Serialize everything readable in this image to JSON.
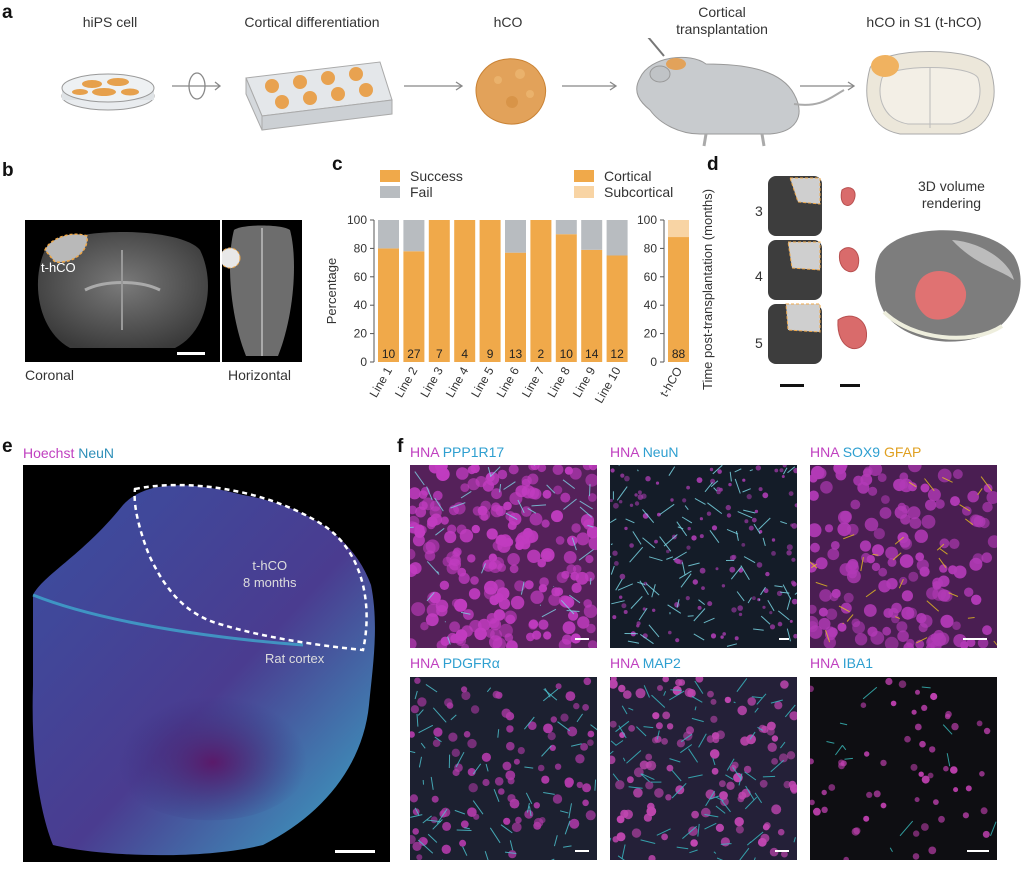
{
  "panels": {
    "a": "a",
    "b": "b",
    "c": "c",
    "d": "d",
    "e": "e",
    "f": "f"
  },
  "a": {
    "steps": [
      "hiPS cell",
      "Cortical differentiation",
      "hCO",
      "Cortical\ntransplantation",
      "hCO in S1 (t-hCO)"
    ]
  },
  "b": {
    "inset_label": "t-hCO",
    "views": [
      "Coronal",
      "Horizontal"
    ]
  },
  "c": {
    "legend_left": [
      "Success",
      "Fail"
    ],
    "legend_right": [
      "Cortical",
      "Subcortical"
    ],
    "colors": {
      "success": "#f0a94a",
      "fail": "#b8bcc0",
      "cortical": "#f0a94a",
      "subcortical": "#f8d4a4"
    }
  },
  "chart_data": [
    {
      "type": "bar",
      "stacked": true,
      "categories": [
        "Line 1",
        "Line 2",
        "Line 3",
        "Line 4",
        "Line 5",
        "Line 6",
        "Line 7",
        "Line 8",
        "Line 9",
        "Line 10"
      ],
      "series": [
        {
          "name": "Success",
          "values": [
            80,
            78,
            100,
            100,
            100,
            77,
            100,
            90,
            79,
            75
          ]
        },
        {
          "name": "Fail",
          "values": [
            20,
            22,
            0,
            0,
            0,
            23,
            0,
            10,
            21,
            25
          ]
        }
      ],
      "counts": [
        "10",
        "27",
        "7",
        "4",
        "9",
        "13",
        "2",
        "10",
        "14",
        "12"
      ],
      "ylabel": "Percentage",
      "ylim": [
        0,
        100
      ],
      "yticks": [
        "0",
        "20",
        "40",
        "60",
        "80",
        "100"
      ]
    },
    {
      "type": "bar",
      "stacked": true,
      "categories": [
        "t-hCO"
      ],
      "series": [
        {
          "name": "Cortical",
          "values": [
            88
          ]
        },
        {
          "name": "Subcortical",
          "values": [
            12
          ]
        }
      ],
      "counts": [
        "88"
      ],
      "ylim": [
        0,
        100
      ],
      "yticks": [
        "0",
        "20",
        "40",
        "60",
        "80",
        "100"
      ]
    }
  ],
  "d": {
    "ylabel": "Time post-transplantation (months)",
    "months": [
      "3",
      "4",
      "5"
    ],
    "render_label": "3D volume\nrendering"
  },
  "e": {
    "stains": [
      {
        "text": "Hoechst",
        "color": "#c040c0"
      },
      {
        "text": "NeuN",
        "color": "#2e8fb8"
      }
    ],
    "region_label": "t-hCO\n8 months",
    "cortex_label": "Rat cortex"
  },
  "f": {
    "images": [
      {
        "labels": [
          {
            "text": "HNA",
            "color": "#c040c0"
          },
          {
            "text": "PPP1R17",
            "color": "#2e9fd0"
          }
        ]
      },
      {
        "labels": [
          {
            "text": "HNA",
            "color": "#c040c0"
          },
          {
            "text": "NeuN",
            "color": "#2e9fd0"
          }
        ]
      },
      {
        "labels": [
          {
            "text": "HNA",
            "color": "#c040c0"
          },
          {
            "text": "SOX9",
            "color": "#2e9fd0"
          },
          {
            "text": "GFAP",
            "color": "#e0a020"
          }
        ]
      },
      {
        "labels": [
          {
            "text": "HNA",
            "color": "#c040c0"
          },
          {
            "text": "PDGFRα",
            "color": "#2e9fd0"
          }
        ]
      },
      {
        "labels": [
          {
            "text": "HNA",
            "color": "#c040c0"
          },
          {
            "text": "MAP2",
            "color": "#2e9fd0"
          }
        ]
      },
      {
        "labels": [
          {
            "text": "HNA",
            "color": "#c040c0"
          },
          {
            "text": "IBA1",
            "color": "#2e9fd0"
          }
        ]
      }
    ]
  }
}
